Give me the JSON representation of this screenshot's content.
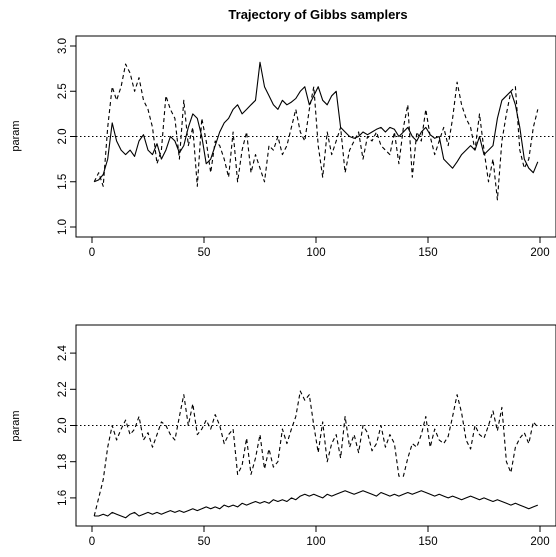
{
  "figure": {
    "title": "Trajectory of Gibbs samplers"
  },
  "chart_data": [
    {
      "type": "line",
      "title": "Trajectory of Gibbs samplers",
      "xlabel": "",
      "ylabel": "param",
      "xlim": [
        0,
        200
      ],
      "ylim": [
        1.0,
        3.0
      ],
      "xticks": [
        0,
        50,
        100,
        150,
        200
      ],
      "yticks": [
        1.0,
        1.5,
        2.0,
        2.5,
        3.0
      ],
      "xtick_labels": [
        "0",
        "50",
        "100",
        "150",
        "200"
      ],
      "ytick_labels": [
        "1.0",
        "1.5",
        "2.0",
        "2.5",
        "3.0"
      ],
      "reference_line": {
        "y": 2.0,
        "style": "dotted"
      },
      "grid": false,
      "x": [
        1,
        3,
        5,
        7,
        9,
        11,
        13,
        15,
        17,
        19,
        21,
        23,
        25,
        27,
        29,
        31,
        33,
        35,
        37,
        39,
        41,
        43,
        45,
        47,
        49,
        51,
        53,
        55,
        57,
        59,
        61,
        63,
        65,
        67,
        69,
        71,
        73,
        75,
        77,
        79,
        81,
        83,
        85,
        87,
        89,
        91,
        93,
        95,
        97,
        99,
        101,
        103,
        105,
        107,
        109,
        111,
        113,
        115,
        117,
        119,
        121,
        123,
        125,
        127,
        129,
        131,
        133,
        135,
        137,
        139,
        141,
        143,
        145,
        147,
        149,
        151,
        153,
        155,
        157,
        159,
        161,
        163,
        165,
        167,
        169,
        171,
        173,
        175,
        177,
        179,
        181,
        183,
        185,
        187,
        189,
        191,
        193,
        195,
        197,
        199
      ],
      "series": [
        {
          "style": "solid",
          "values": [
            1.5,
            1.52,
            1.58,
            1.75,
            2.15,
            1.95,
            1.85,
            1.8,
            1.85,
            1.78,
            1.95,
            2.02,
            1.85,
            1.8,
            1.92,
            1.75,
            1.85,
            2.0,
            1.95,
            1.82,
            1.9,
            2.1,
            2.25,
            2.2,
            2.0,
            1.7,
            1.75,
            1.9,
            2.05,
            2.15,
            2.2,
            2.3,
            2.35,
            2.25,
            2.3,
            2.35,
            2.4,
            2.82,
            2.55,
            2.45,
            2.35,
            2.3,
            2.4,
            2.35,
            2.38,
            2.42,
            2.5,
            2.55,
            2.35,
            2.45,
            2.55,
            2.4,
            2.35,
            2.45,
            2.5,
            2.1,
            2.05,
            2.0,
            1.98,
            2.0,
            2.05,
            2.02,
            2.05,
            2.08,
            2.1,
            2.05,
            2.1,
            2.08,
            2.0,
            2.05,
            2.1,
            2.0,
            1.95,
            2.05,
            2.1,
            2.02,
            1.98,
            2.0,
            1.75,
            1.7,
            1.65,
            1.72,
            1.8,
            1.85,
            1.9,
            1.85,
            2.0,
            1.8,
            1.85,
            1.9,
            2.2,
            2.4,
            2.45,
            2.5,
            2.35,
            2.1,
            1.75,
            1.65,
            1.6,
            1.72
          ]
        },
        {
          "style": "dashed",
          "values": [
            1.5,
            1.6,
            1.45,
            2.1,
            2.55,
            2.4,
            2.55,
            2.8,
            2.7,
            2.5,
            2.65,
            2.4,
            2.3,
            2.1,
            1.7,
            1.85,
            2.45,
            2.3,
            2.2,
            1.75,
            2.4,
            1.9,
            2.1,
            1.45,
            2.2,
            1.95,
            1.6,
            1.95,
            1.9,
            1.75,
            1.55,
            2.05,
            1.5,
            1.85,
            2.05,
            1.6,
            1.8,
            1.65,
            1.5,
            1.9,
            1.85,
            2.0,
            1.8,
            1.9,
            2.1,
            2.3,
            2.05,
            1.95,
            2.3,
            2.55,
            1.9,
            1.55,
            2.05,
            1.8,
            1.95,
            2.1,
            1.6,
            1.85,
            1.95,
            2.05,
            1.75,
            2.0,
            1.95,
            2.05,
            1.9,
            1.85,
            1.8,
            2.05,
            1.7,
            2.1,
            2.35,
            1.55,
            2.05,
            1.95,
            2.3,
            2.0,
            1.8,
            1.95,
            2.1,
            1.9,
            2.2,
            2.6,
            2.35,
            2.2,
            2.1,
            1.85,
            2.25,
            1.85,
            1.5,
            1.75,
            1.3,
            1.95,
            2.25,
            2.5,
            2.55,
            1.85,
            1.65,
            1.75,
            2.1,
            2.3
          ]
        }
      ]
    },
    {
      "type": "line",
      "title": "",
      "xlabel": "",
      "ylabel": "param",
      "xlim": [
        0,
        200
      ],
      "ylim": [
        1.5,
        2.5
      ],
      "xticks": [
        0,
        50,
        100,
        150,
        200
      ],
      "yticks": [
        1.6,
        1.8,
        2.0,
        2.2,
        2.4
      ],
      "xtick_labels": [
        "0",
        "50",
        "100",
        "150",
        "200"
      ],
      "ytick_labels": [
        "1.6",
        "1.8",
        "2.0",
        "2.2",
        "2.4"
      ],
      "reference_line": {
        "y": 2.0,
        "style": "dotted"
      },
      "grid": false,
      "x": [
        1,
        3,
        5,
        7,
        9,
        11,
        13,
        15,
        17,
        19,
        21,
        23,
        25,
        27,
        29,
        31,
        33,
        35,
        37,
        39,
        41,
        43,
        45,
        47,
        49,
        51,
        53,
        55,
        57,
        59,
        61,
        63,
        65,
        67,
        69,
        71,
        73,
        75,
        77,
        79,
        81,
        83,
        85,
        87,
        89,
        91,
        93,
        95,
        97,
        99,
        101,
        103,
        105,
        107,
        109,
        111,
        113,
        115,
        117,
        119,
        121,
        123,
        125,
        127,
        129,
        131,
        133,
        135,
        137,
        139,
        141,
        143,
        145,
        147,
        149,
        151,
        153,
        155,
        157,
        159,
        161,
        163,
        165,
        167,
        169,
        171,
        173,
        175,
        177,
        179,
        181,
        183,
        185,
        187,
        189,
        191,
        193,
        195,
        197,
        199
      ],
      "series": [
        {
          "style": "solid",
          "values": [
            1.5,
            1.5,
            1.51,
            1.5,
            1.52,
            1.51,
            1.5,
            1.49,
            1.51,
            1.52,
            1.5,
            1.51,
            1.52,
            1.51,
            1.52,
            1.51,
            1.52,
            1.53,
            1.52,
            1.53,
            1.52,
            1.53,
            1.54,
            1.53,
            1.54,
            1.55,
            1.54,
            1.55,
            1.54,
            1.56,
            1.55,
            1.56,
            1.55,
            1.57,
            1.56,
            1.57,
            1.58,
            1.57,
            1.58,
            1.57,
            1.59,
            1.58,
            1.59,
            1.58,
            1.6,
            1.59,
            1.61,
            1.62,
            1.61,
            1.62,
            1.61,
            1.6,
            1.62,
            1.61,
            1.62,
            1.63,
            1.64,
            1.63,
            1.62,
            1.63,
            1.64,
            1.63,
            1.62,
            1.61,
            1.63,
            1.62,
            1.61,
            1.62,
            1.61,
            1.62,
            1.63,
            1.62,
            1.63,
            1.64,
            1.63,
            1.62,
            1.61,
            1.62,
            1.61,
            1.6,
            1.61,
            1.6,
            1.59,
            1.6,
            1.61,
            1.6,
            1.59,
            1.6,
            1.59,
            1.58,
            1.59,
            1.58,
            1.57,
            1.56,
            1.57,
            1.56,
            1.55,
            1.54,
            1.55,
            1.56
          ]
        },
        {
          "style": "dashed",
          "values": [
            1.5,
            1.6,
            1.7,
            1.88,
            2.0,
            1.92,
            1.98,
            2.03,
            1.95,
            1.98,
            2.05,
            1.92,
            1.96,
            1.88,
            1.95,
            2.02,
            2.0,
            1.95,
            1.92,
            2.05,
            2.17,
            2.0,
            2.12,
            1.95,
            1.98,
            2.03,
            1.98,
            2.06,
            2.0,
            1.9,
            1.95,
            1.98,
            1.73,
            1.78,
            1.93,
            1.73,
            1.82,
            1.95,
            1.76,
            1.87,
            1.77,
            1.8,
            1.98,
            1.9,
            1.98,
            2.05,
            2.19,
            2.14,
            2.17,
            2.0,
            1.85,
            2.02,
            1.8,
            1.9,
            1.95,
            1.82,
            2.05,
            1.88,
            1.95,
            1.85,
            2.0,
            1.96,
            1.86,
            1.9,
            2.0,
            1.88,
            1.95,
            1.9,
            1.72,
            1.72,
            1.82,
            1.9,
            1.88,
            1.95,
            2.05,
            1.88,
            1.98,
            1.92,
            1.9,
            1.94,
            2.05,
            2.17,
            2.07,
            1.92,
            1.87,
            2.0,
            1.95,
            1.93,
            2.0,
            2.08,
            1.97,
            2.1,
            1.8,
            1.74,
            1.88,
            1.93,
            1.96,
            1.9,
            2.02,
            1.99
          ]
        }
      ]
    }
  ]
}
